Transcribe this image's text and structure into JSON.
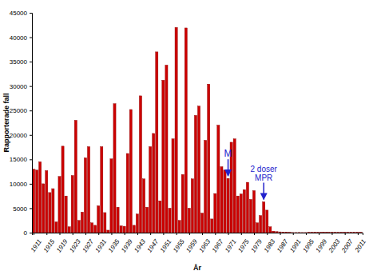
{
  "chart_data": {
    "type": "bar",
    "x_label": "År",
    "y_label": "Rapporterade fall",
    "x": [
      1911,
      1912,
      1913,
      1914,
      1915,
      1916,
      1917,
      1918,
      1919,
      1920,
      1921,
      1922,
      1923,
      1924,
      1925,
      1926,
      1927,
      1928,
      1929,
      1930,
      1931,
      1932,
      1933,
      1934,
      1935,
      1936,
      1937,
      1938,
      1939,
      1940,
      1941,
      1942,
      1943,
      1944,
      1945,
      1946,
      1947,
      1948,
      1949,
      1950,
      1951,
      1952,
      1953,
      1954,
      1955,
      1956,
      1957,
      1958,
      1959,
      1960,
      1961,
      1962,
      1963,
      1964,
      1965,
      1966,
      1967,
      1968,
      1969,
      1970,
      1971,
      1972,
      1973,
      1974,
      1975,
      1976,
      1977,
      1978,
      1979,
      1980,
      1981,
      1982,
      1983,
      1984,
      1985,
      1986,
      1987,
      1988,
      1989,
      1990,
      1991,
      1992,
      1993,
      1994,
      1995,
      1996,
      1997,
      1998,
      1999,
      2000,
      2001,
      2002,
      2003,
      2004,
      2005,
      2006,
      2007,
      2008,
      2009,
      2010,
      2011,
      2012
    ],
    "values": [
      13000,
      12800,
      14500,
      10000,
      12700,
      8200,
      9000,
      2200,
      11500,
      17700,
      7500,
      1200,
      11700,
      23000,
      2500,
      4200,
      15300,
      17600,
      2000,
      1500,
      5500,
      17600,
      4100,
      500,
      15100,
      26400,
      5200,
      1400,
      1300,
      16200,
      25200,
      1500,
      3800,
      28000,
      11000,
      5200,
      17600,
      20300,
      37000,
      6500,
      31200,
      34300,
      5000,
      19200,
      42000,
      2500,
      11900,
      41900,
      5000,
      11000,
      24000,
      25900,
      4000,
      18900,
      30400,
      2800,
      8000,
      22000,
      13500,
      12800,
      11100,
      18500,
      19200,
      7500,
      7900,
      8800,
      10300,
      6800,
      8600,
      2000,
      3500,
      6300,
      4600,
      1200,
      300,
      200,
      150,
      100,
      100,
      50,
      20,
      20,
      30,
      20,
      20,
      40,
      50,
      60,
      40,
      50,
      40,
      50,
      60,
      50,
      40,
      50,
      60,
      50,
      40,
      50,
      60,
      50
    ],
    "color": "#cc0000",
    "xlim": [
      1910.5,
      2012.5
    ],
    "xticks": [
      1911,
      1915,
      1919,
      1923,
      1927,
      1931,
      1935,
      1939,
      1943,
      1947,
      1951,
      1955,
      1959,
      1963,
      1967,
      1971,
      1975,
      1979,
      1983,
      1987,
      1991,
      1995,
      1999,
      2003,
      2007,
      2011
    ],
    "ylim": [
      0,
      45000
    ],
    "yticks": [
      0,
      5000,
      10000,
      15000,
      20000,
      25000,
      30000,
      35000,
      40000,
      45000
    ],
    "grid": false,
    "annotations": [
      {
        "text": [
          "M"
        ],
        "x": 1971,
        "color": "#2222cc"
      },
      {
        "text": [
          "2 doser",
          "MPR"
        ],
        "x": 1982,
        "color": "#2222cc"
      }
    ]
  }
}
